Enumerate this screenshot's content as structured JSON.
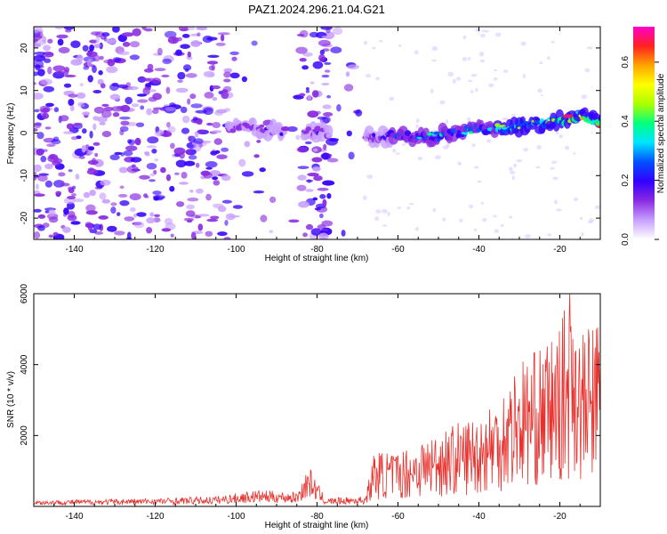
{
  "title": "PAZ1.2024.296.21.04.G21",
  "chart_data": [
    {
      "type": "heatmap",
      "xlabel": "Height of straight line (km)",
      "ylabel": "Frequency (Hz)",
      "xlim": [
        -150,
        -10
      ],
      "ylim": [
        -25,
        25
      ],
      "xticks": [
        -140,
        -120,
        -100,
        -80,
        -60,
        -40,
        -20
      ],
      "yticks": [
        -20,
        -10,
        0,
        10,
        20
      ],
      "colorbar": {
        "label": "Normalized spectral amplitude",
        "range": [
          0.0,
          0.72
        ],
        "ticks": [
          0.0,
          0.2,
          0.4,
          0.6
        ],
        "tick_labels": [
          "0.0",
          "0.2",
          "0.4",
          "0.6"
        ],
        "colors": [
          "#ffffff",
          "#c8a0ff",
          "#8a2be2",
          "#3300ff",
          "#0050ff",
          "#00e5ff",
          "#00ff80",
          "#aaff00",
          "#ffff00",
          "#ffa500",
          "#ff2020",
          "#ff00cc"
        ]
      },
      "gaps": [
        [
          -102,
          -88
        ],
        [
          -88,
          -84
        ],
        [
          -77,
          -69
        ]
      ],
      "signal_ridge": [
        {
          "x": -100,
          "freq": 1.5
        },
        {
          "x": -90,
          "freq": 0.5
        },
        {
          "x": -80,
          "freq": 0.0
        },
        {
          "x": -67,
          "freq": -1.0
        },
        {
          "x": -60,
          "freq": -1.0
        },
        {
          "x": -50,
          "freq": -0.5
        },
        {
          "x": -40,
          "freq": 1.0
        },
        {
          "x": -30,
          "freq": 1.5
        },
        {
          "x": -20,
          "freq": 3.0
        },
        {
          "x": -15,
          "freq": 4.0
        },
        {
          "x": -10,
          "freq": 2.0
        }
      ]
    },
    {
      "type": "line",
      "xlabel": "Height of straight line (km)",
      "ylabel": "SNR (10 * v/v)",
      "xlim": [
        -150,
        -10
      ],
      "ylim": [
        0,
        6000
      ],
      "xticks": [
        -140,
        -120,
        -100,
        -80,
        -60,
        -40,
        -20
      ],
      "yticks": [
        2000,
        4000,
        6000
      ],
      "line_color": "#e8302c",
      "envelope": [
        {
          "x": -150,
          "snr": 150
        },
        {
          "x": -120,
          "snr": 200
        },
        {
          "x": -105,
          "snr": 250
        },
        {
          "x": -95,
          "snr": 400
        },
        {
          "x": -85,
          "snr": 350
        },
        {
          "x": -82,
          "snr": 1000
        },
        {
          "x": -78,
          "snr": 200
        },
        {
          "x": -68,
          "snr": 250
        },
        {
          "x": -66,
          "snr": 1300
        },
        {
          "x": -60,
          "snr": 1300
        },
        {
          "x": -50,
          "snr": 1800
        },
        {
          "x": -40,
          "snr": 2200
        },
        {
          "x": -35,
          "snr": 2700
        },
        {
          "x": -30,
          "snr": 3500
        },
        {
          "x": -25,
          "snr": 3700
        },
        {
          "x": -20,
          "snr": 4200
        },
        {
          "x": -18,
          "snr": 5000
        },
        {
          "x": -17,
          "snr": 6000
        },
        {
          "x": -15,
          "snr": 4000
        },
        {
          "x": -10,
          "snr": 4600
        }
      ]
    }
  ]
}
